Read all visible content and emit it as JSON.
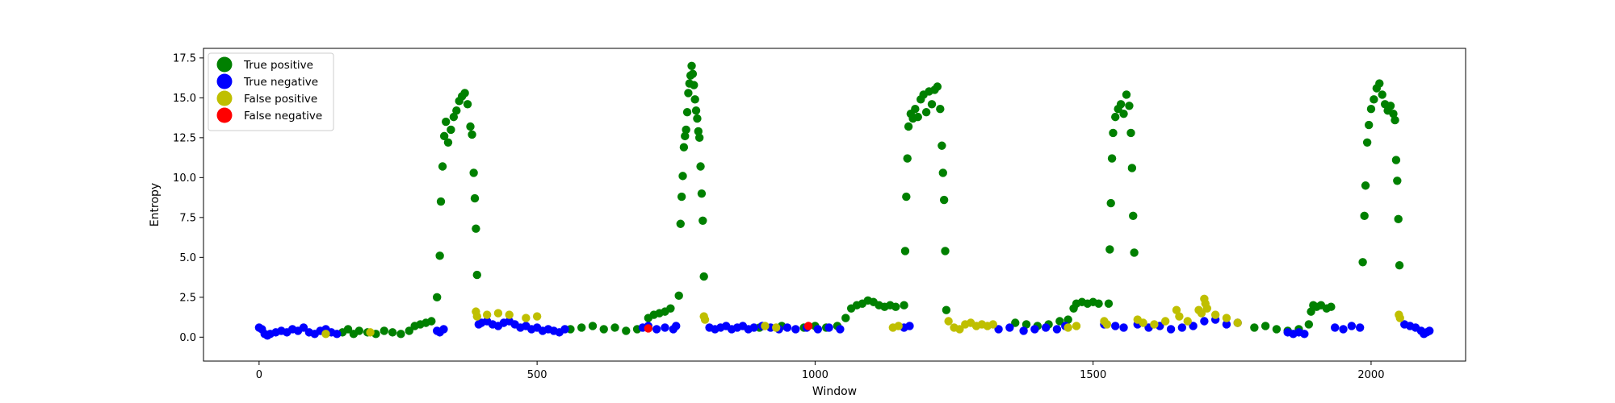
{
  "chart_data": {
    "type": "scatter",
    "title": "",
    "xlabel": "Window",
    "ylabel": "Entropy",
    "xlim": [
      -100,
      2170
    ],
    "ylim": [
      -1.5,
      18.1
    ],
    "xticks": [
      0,
      500,
      1000,
      1500,
      2000
    ],
    "xtick_labels": [
      "0",
      "500",
      "1000",
      "1500",
      "2000"
    ],
    "yticks": [
      0.0,
      2.5,
      5.0,
      7.5,
      10.0,
      12.5,
      15.0,
      17.5
    ],
    "ytick_labels": [
      "0.0",
      "2.5",
      "5.0",
      "7.5",
      "10.0",
      "12.5",
      "15.0",
      "17.5"
    ],
    "grid": false,
    "legend": {
      "position": "top-left"
    },
    "series": [
      {
        "name": "True positive",
        "color": "#008000",
        "points": [
          [
            150,
            0.3
          ],
          [
            160,
            0.5
          ],
          [
            170,
            0.2
          ],
          [
            180,
            0.4
          ],
          [
            195,
            0.3
          ],
          [
            210,
            0.2
          ],
          [
            225,
            0.4
          ],
          [
            240,
            0.3
          ],
          [
            255,
            0.2
          ],
          [
            270,
            0.4
          ],
          [
            280,
            0.7
          ],
          [
            290,
            0.8
          ],
          [
            300,
            0.9
          ],
          [
            310,
            1.0
          ],
          [
            320,
            2.5
          ],
          [
            325,
            5.1
          ],
          [
            327,
            8.5
          ],
          [
            330,
            10.7
          ],
          [
            333,
            12.6
          ],
          [
            336,
            13.5
          ],
          [
            340,
            12.2
          ],
          [
            345,
            13.0
          ],
          [
            350,
            13.8
          ],
          [
            355,
            14.2
          ],
          [
            360,
            14.8
          ],
          [
            365,
            15.1
          ],
          [
            370,
            15.3
          ],
          [
            375,
            14.6
          ],
          [
            380,
            13.2
          ],
          [
            383,
            12.7
          ],
          [
            386,
            10.3
          ],
          [
            388,
            8.7
          ],
          [
            390,
            6.8
          ],
          [
            392,
            3.9
          ],
          [
            560,
            0.5
          ],
          [
            580,
            0.6
          ],
          [
            600,
            0.7
          ],
          [
            620,
            0.5
          ],
          [
            640,
            0.6
          ],
          [
            660,
            0.4
          ],
          [
            680,
            0.5
          ],
          [
            700,
            1.2
          ],
          [
            710,
            1.4
          ],
          [
            720,
            1.5
          ],
          [
            730,
            1.6
          ],
          [
            740,
            1.8
          ],
          [
            755,
            2.6
          ],
          [
            758,
            7.1
          ],
          [
            760,
            8.8
          ],
          [
            762,
            10.1
          ],
          [
            764,
            11.9
          ],
          [
            766,
            12.6
          ],
          [
            768,
            13.0
          ],
          [
            770,
            14.1
          ],
          [
            772,
            15.3
          ],
          [
            774,
            15.9
          ],
          [
            776,
            16.4
          ],
          [
            778,
            17.0
          ],
          [
            780,
            16.5
          ],
          [
            782,
            15.8
          ],
          [
            784,
            14.9
          ],
          [
            786,
            14.2
          ],
          [
            788,
            13.7
          ],
          [
            790,
            12.9
          ],
          [
            792,
            12.5
          ],
          [
            794,
            10.7
          ],
          [
            796,
            9.0
          ],
          [
            798,
            7.3
          ],
          [
            800,
            3.8
          ],
          [
            900,
            0.6
          ],
          [
            940,
            0.7
          ],
          [
            980,
            0.6
          ],
          [
            1000,
            0.7
          ],
          [
            1020,
            0.6
          ],
          [
            1040,
            0.7
          ],
          [
            1055,
            1.2
          ],
          [
            1065,
            1.8
          ],
          [
            1075,
            2.0
          ],
          [
            1085,
            2.1
          ],
          [
            1095,
            2.3
          ],
          [
            1105,
            2.2
          ],
          [
            1115,
            2.0
          ],
          [
            1125,
            1.9
          ],
          [
            1135,
            2.0
          ],
          [
            1145,
            1.9
          ],
          [
            1160,
            2.0
          ],
          [
            1162,
            5.4
          ],
          [
            1164,
            8.8
          ],
          [
            1166,
            11.2
          ],
          [
            1168,
            13.2
          ],
          [
            1172,
            14.0
          ],
          [
            1176,
            13.7
          ],
          [
            1180,
            14.3
          ],
          [
            1185,
            13.8
          ],
          [
            1190,
            14.9
          ],
          [
            1195,
            15.2
          ],
          [
            1200,
            14.1
          ],
          [
            1205,
            15.4
          ],
          [
            1210,
            14.6
          ],
          [
            1215,
            15.5
          ],
          [
            1220,
            15.7
          ],
          [
            1225,
            14.3
          ],
          [
            1228,
            12.0
          ],
          [
            1230,
            10.3
          ],
          [
            1232,
            8.6
          ],
          [
            1234,
            5.4
          ],
          [
            1236,
            1.7
          ],
          [
            1360,
            0.9
          ],
          [
            1380,
            0.8
          ],
          [
            1400,
            0.7
          ],
          [
            1420,
            0.8
          ],
          [
            1440,
            1.0
          ],
          [
            1455,
            1.1
          ],
          [
            1465,
            1.8
          ],
          [
            1470,
            2.1
          ],
          [
            1480,
            2.2
          ],
          [
            1490,
            2.1
          ],
          [
            1500,
            2.2
          ],
          [
            1510,
            2.1
          ],
          [
            1528,
            2.1
          ],
          [
            1530,
            5.5
          ],
          [
            1532,
            8.4
          ],
          [
            1534,
            11.2
          ],
          [
            1536,
            12.8
          ],
          [
            1540,
            13.8
          ],
          [
            1545,
            14.3
          ],
          [
            1550,
            14.6
          ],
          [
            1555,
            14.0
          ],
          [
            1560,
            15.2
          ],
          [
            1565,
            14.5
          ],
          [
            1568,
            12.8
          ],
          [
            1570,
            10.6
          ],
          [
            1572,
            7.6
          ],
          [
            1574,
            5.3
          ],
          [
            1790,
            0.6
          ],
          [
            1810,
            0.7
          ],
          [
            1830,
            0.5
          ],
          [
            1850,
            0.4
          ],
          [
            1870,
            0.5
          ],
          [
            1888,
            0.8
          ],
          [
            1892,
            1.6
          ],
          [
            1896,
            2.0
          ],
          [
            1902,
            1.9
          ],
          [
            1910,
            2.0
          ],
          [
            1920,
            1.8
          ],
          [
            1928,
            1.9
          ],
          [
            1985,
            4.7
          ],
          [
            1988,
            7.6
          ],
          [
            1990,
            9.5
          ],
          [
            1993,
            12.2
          ],
          [
            1996,
            13.3
          ],
          [
            2000,
            14.3
          ],
          [
            2005,
            14.9
          ],
          [
            2010,
            15.6
          ],
          [
            2015,
            15.9
          ],
          [
            2020,
            15.2
          ],
          [
            2025,
            14.6
          ],
          [
            2030,
            14.2
          ],
          [
            2035,
            14.5
          ],
          [
            2040,
            14.0
          ],
          [
            2043,
            13.6
          ],
          [
            2045,
            11.1
          ],
          [
            2047,
            9.8
          ],
          [
            2049,
            7.4
          ],
          [
            2051,
            4.5
          ]
        ]
      },
      {
        "name": "True negative",
        "color": "#0000ff",
        "points": [
          [
            0,
            0.6
          ],
          [
            5,
            0.5
          ],
          [
            10,
            0.2
          ],
          [
            15,
            0.1
          ],
          [
            20,
            0.2
          ],
          [
            30,
            0.3
          ],
          [
            40,
            0.4
          ],
          [
            50,
            0.3
          ],
          [
            60,
            0.5
          ],
          [
            70,
            0.4
          ],
          [
            80,
            0.6
          ],
          [
            90,
            0.3
          ],
          [
            100,
            0.2
          ],
          [
            110,
            0.4
          ],
          [
            120,
            0.5
          ],
          [
            130,
            0.3
          ],
          [
            140,
            0.2
          ],
          [
            320,
            0.4
          ],
          [
            325,
            0.3
          ],
          [
            332,
            0.5
          ],
          [
            395,
            0.8
          ],
          [
            400,
            0.9
          ],
          [
            410,
            1.0
          ],
          [
            420,
            0.8
          ],
          [
            430,
            0.7
          ],
          [
            440,
            0.9
          ],
          [
            450,
            1.0
          ],
          [
            460,
            0.8
          ],
          [
            470,
            0.6
          ],
          [
            480,
            0.7
          ],
          [
            490,
            0.5
          ],
          [
            500,
            0.6
          ],
          [
            510,
            0.4
          ],
          [
            520,
            0.5
          ],
          [
            530,
            0.4
          ],
          [
            540,
            0.3
          ],
          [
            550,
            0.5
          ],
          [
            690,
            0.6
          ],
          [
            700,
            0.7
          ],
          [
            715,
            0.5
          ],
          [
            730,
            0.6
          ],
          [
            745,
            0.5
          ],
          [
            750,
            0.7
          ],
          [
            810,
            0.6
          ],
          [
            820,
            0.5
          ],
          [
            830,
            0.6
          ],
          [
            840,
            0.7
          ],
          [
            850,
            0.5
          ],
          [
            860,
            0.6
          ],
          [
            870,
            0.7
          ],
          [
            880,
            0.5
          ],
          [
            890,
            0.6
          ],
          [
            905,
            0.7
          ],
          [
            920,
            0.6
          ],
          [
            935,
            0.5
          ],
          [
            950,
            0.6
          ],
          [
            965,
            0.5
          ],
          [
            985,
            0.6
          ],
          [
            1005,
            0.5
          ],
          [
            1025,
            0.6
          ],
          [
            1045,
            0.5
          ],
          [
            1160,
            0.6
          ],
          [
            1170,
            0.7
          ],
          [
            1330,
            0.5
          ],
          [
            1350,
            0.6
          ],
          [
            1375,
            0.4
          ],
          [
            1395,
            0.5
          ],
          [
            1415,
            0.6
          ],
          [
            1435,
            0.5
          ],
          [
            1450,
            0.7
          ],
          [
            1520,
            0.8
          ],
          [
            1540,
            0.7
          ],
          [
            1555,
            0.6
          ],
          [
            1580,
            0.8
          ],
          [
            1600,
            0.6
          ],
          [
            1620,
            0.7
          ],
          [
            1640,
            0.5
          ],
          [
            1660,
            0.6
          ],
          [
            1680,
            0.7
          ],
          [
            1700,
            1.0
          ],
          [
            1720,
            1.1
          ],
          [
            1740,
            0.8
          ],
          [
            1760,
            0.9
          ],
          [
            1850,
            0.3
          ],
          [
            1860,
            0.2
          ],
          [
            1870,
            0.3
          ],
          [
            1880,
            0.2
          ],
          [
            1935,
            0.6
          ],
          [
            1950,
            0.5
          ],
          [
            1965,
            0.7
          ],
          [
            1980,
            0.6
          ],
          [
            2060,
            0.8
          ],
          [
            2070,
            0.7
          ],
          [
            2080,
            0.6
          ],
          [
            2090,
            0.4
          ],
          [
            2095,
            0.2
          ],
          [
            2100,
            0.3
          ],
          [
            2105,
            0.4
          ]
        ]
      },
      {
        "name": "False positive",
        "color": "#bfbf00",
        "points": [
          [
            120,
            0.2
          ],
          [
            200,
            0.3
          ],
          [
            390,
            1.6
          ],
          [
            392,
            1.3
          ],
          [
            410,
            1.4
          ],
          [
            430,
            1.5
          ],
          [
            450,
            1.4
          ],
          [
            480,
            1.2
          ],
          [
            500,
            1.3
          ],
          [
            800,
            1.3
          ],
          [
            802,
            1.1
          ],
          [
            910,
            0.7
          ],
          [
            930,
            0.6
          ],
          [
            1140,
            0.6
          ],
          [
            1150,
            0.7
          ],
          [
            1240,
            1.0
          ],
          [
            1250,
            0.6
          ],
          [
            1260,
            0.5
          ],
          [
            1270,
            0.8
          ],
          [
            1280,
            0.9
          ],
          [
            1290,
            0.7
          ],
          [
            1300,
            0.8
          ],
          [
            1310,
            0.7
          ],
          [
            1320,
            0.8
          ],
          [
            1455,
            0.6
          ],
          [
            1470,
            0.7
          ],
          [
            1520,
            1.0
          ],
          [
            1525,
            0.8
          ],
          [
            1580,
            1.1
          ],
          [
            1590,
            0.9
          ],
          [
            1610,
            0.8
          ],
          [
            1630,
            1.0
          ],
          [
            1650,
            1.7
          ],
          [
            1655,
            1.3
          ],
          [
            1670,
            1.0
          ],
          [
            1690,
            1.7
          ],
          [
            1695,
            1.5
          ],
          [
            1700,
            2.4
          ],
          [
            1702,
            2.1
          ],
          [
            1705,
            1.8
          ],
          [
            1720,
            1.4
          ],
          [
            1740,
            1.2
          ],
          [
            1760,
            0.9
          ],
          [
            2050,
            1.4
          ],
          [
            2052,
            1.2
          ]
        ]
      },
      {
        "name": "False negative",
        "color": "#ff0000",
        "points": [
          [
            700,
            0.55
          ],
          [
            988,
            0.7
          ]
        ]
      }
    ]
  }
}
